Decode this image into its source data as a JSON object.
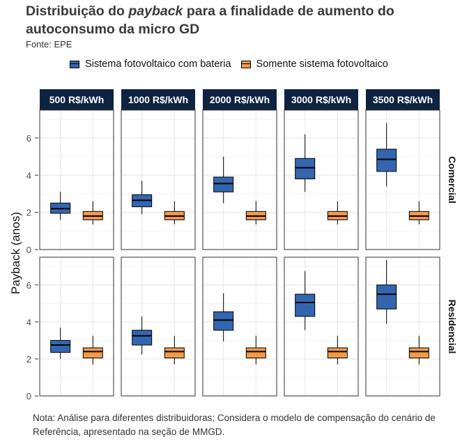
{
  "title_prefix": "Distribuição do ",
  "title_italic": "payback",
  "title_suffix": " para a finalidade de aumento do autoconsumo da micro GD",
  "source": "Fonte: EPE",
  "note": "Nota: Análise para diferentes distribuidoras; Considera o modelo de compensação do cenário de Referência, apresentado na seção de MMGD.",
  "colors": {
    "with_battery": "#3466b0",
    "pv_only": "#f29a4a",
    "strip": "#0d2340",
    "grid": "#ebebeb"
  },
  "chart_data": {
    "type": "boxplot",
    "ylabel": "Payback (anos)",
    "ylim": [
      0,
      7.5
    ],
    "yticks": [
      0,
      2,
      4,
      6
    ],
    "columns": [
      "500 R$/kWh",
      "1000 R$/kWh",
      "2000 R$/kWh",
      "3000 R$/kWh",
      "3500 R$/kWh"
    ],
    "rows": [
      "Comercial",
      "Residencial"
    ],
    "series": [
      {
        "name": "Sistema fotovoltaico com bateria",
        "color": "#3466b0"
      },
      {
        "name": "Somente sistema fotovoltaico",
        "color": "#f29a4a"
      }
    ],
    "boxes": {
      "Comercial": {
        "Sistema fotovoltaico com bateria": [
          {
            "min": 1.6,
            "q1": 1.95,
            "median": 2.2,
            "q3": 2.5,
            "max": 3.1
          },
          {
            "min": 1.9,
            "q1": 2.3,
            "median": 2.65,
            "q3": 2.95,
            "max": 3.7
          },
          {
            "min": 2.5,
            "q1": 3.1,
            "median": 3.55,
            "q3": 3.9,
            "max": 5.0
          },
          {
            "min": 3.1,
            "q1": 3.8,
            "median": 4.4,
            "q3": 4.9,
            "max": 6.2
          },
          {
            "min": 3.4,
            "q1": 4.2,
            "median": 4.85,
            "q3": 5.4,
            "max": 6.8
          }
        ],
        "Somente sistema fotovoltaico": [
          {
            "min": 1.35,
            "q1": 1.6,
            "median": 1.8,
            "q3": 2.05,
            "max": 2.6
          },
          {
            "min": 1.35,
            "q1": 1.6,
            "median": 1.8,
            "q3": 2.05,
            "max": 2.6
          },
          {
            "min": 1.35,
            "q1": 1.6,
            "median": 1.8,
            "q3": 2.05,
            "max": 2.6
          },
          {
            "min": 1.35,
            "q1": 1.6,
            "median": 1.8,
            "q3": 2.05,
            "max": 2.6
          },
          {
            "min": 1.35,
            "q1": 1.6,
            "median": 1.8,
            "q3": 2.05,
            "max": 2.6
          }
        ]
      },
      "Residencial": {
        "Sistema fotovoltaico com bateria": [
          {
            "min": 2.0,
            "q1": 2.35,
            "median": 2.75,
            "q3": 3.0,
            "max": 3.7
          },
          {
            "min": 2.25,
            "q1": 2.75,
            "median": 3.25,
            "q3": 3.55,
            "max": 4.3
          },
          {
            "min": 2.95,
            "q1": 3.55,
            "median": 4.1,
            "q3": 4.55,
            "max": 5.55
          },
          {
            "min": 3.55,
            "q1": 4.3,
            "median": 5.05,
            "q3": 5.5,
            "max": 6.75
          },
          {
            "min": 3.9,
            "q1": 4.7,
            "median": 5.5,
            "q3": 6.0,
            "max": 7.35
          }
        ],
        "Somente sistema fotovoltaico": [
          {
            "min": 1.7,
            "q1": 2.05,
            "median": 2.4,
            "q3": 2.6,
            "max": 3.25
          },
          {
            "min": 1.7,
            "q1": 2.05,
            "median": 2.4,
            "q3": 2.6,
            "max": 3.25
          },
          {
            "min": 1.7,
            "q1": 2.05,
            "median": 2.4,
            "q3": 2.6,
            "max": 3.25
          },
          {
            "min": 1.7,
            "q1": 2.05,
            "median": 2.4,
            "q3": 2.6,
            "max": 3.25
          },
          {
            "min": 1.7,
            "q1": 2.05,
            "median": 2.4,
            "q3": 2.6,
            "max": 3.25
          }
        ]
      }
    }
  }
}
